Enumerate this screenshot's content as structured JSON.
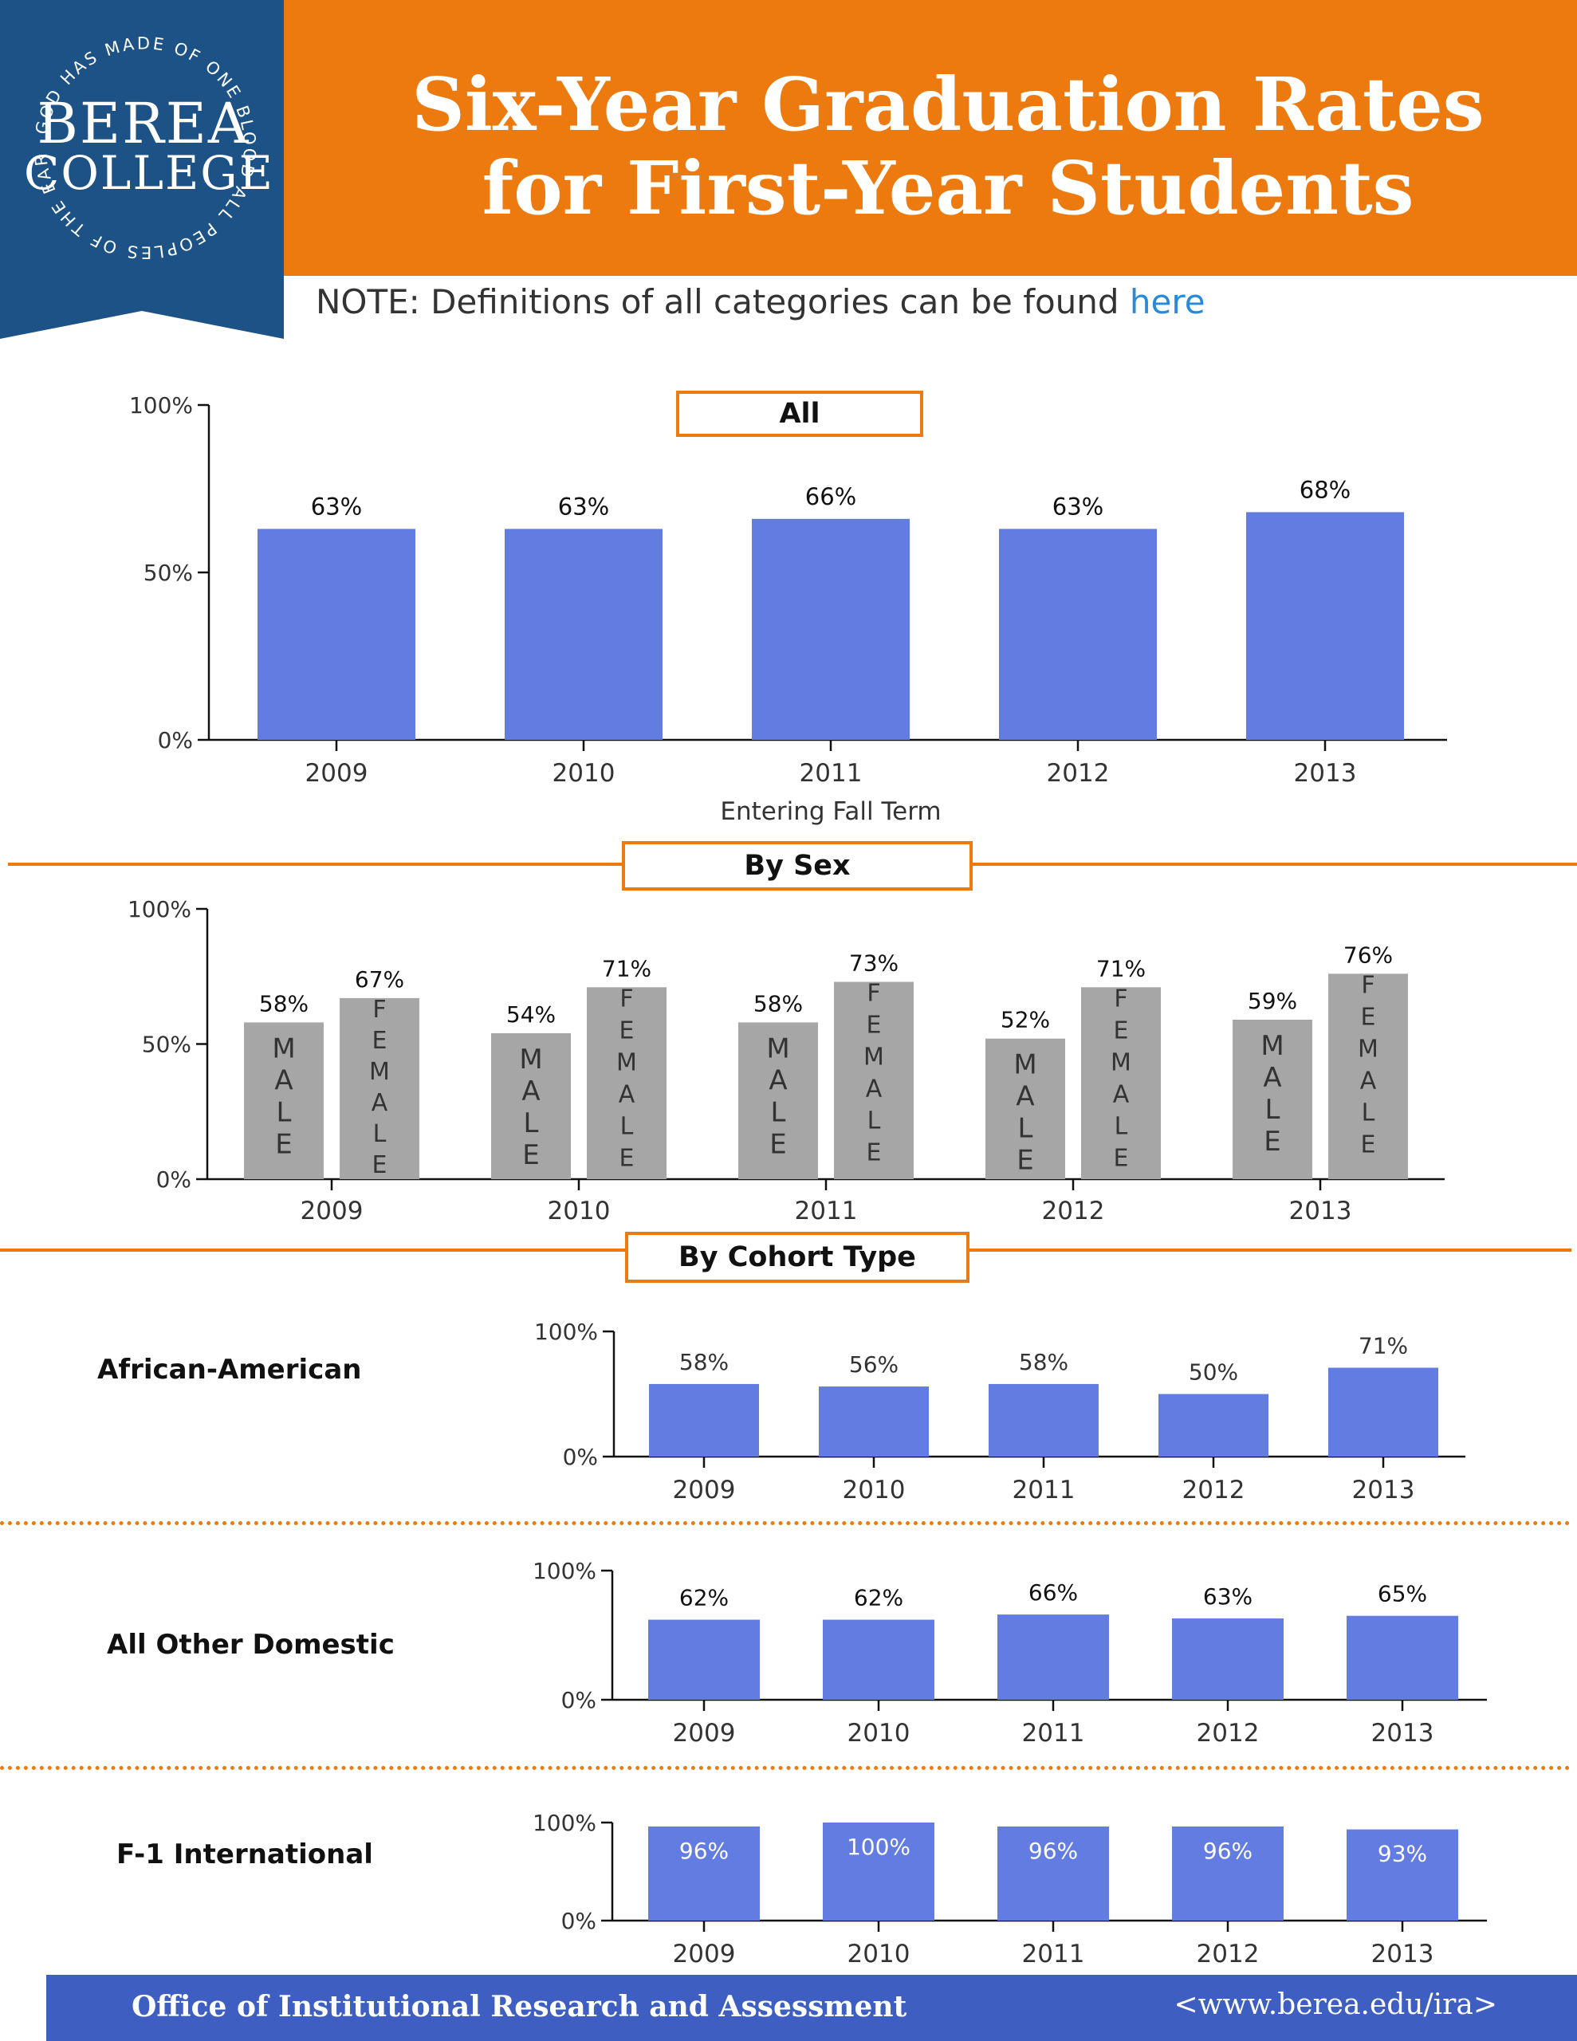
{
  "header": {
    "title_line_1": "Six-Year Graduation Rates",
    "title_line_2": "for First-Year Students",
    "colors": {
      "band": "#ec7a0f",
      "badge": "#1c5285",
      "bar": "#637ce1",
      "sex_bar": "#a6a6a6",
      "footer": "#3e5ec2"
    }
  },
  "logo": {
    "word_1": "BEREA",
    "word_2": "COLLEGE",
    "motto": "GOD HAS MADE OF ONE BLOOD ALL PEOPLES OF THE EARTH"
  },
  "note": {
    "text": "NOTE: Definitions of all categories can be found ",
    "link_label": "here"
  },
  "sections": {
    "all": "All",
    "by_sex": "By Sex",
    "by_cohort": "By Cohort Type"
  },
  "cohorts": {
    "african_american": "African-American",
    "all_other_domestic": "All Other Domestic",
    "f1_international": "F-1 International"
  },
  "chart_data": [
    {
      "id": "all",
      "type": "bar",
      "title": "All",
      "categories": [
        "2009",
        "2010",
        "2011",
        "2012",
        "2013"
      ],
      "values": [
        63,
        63,
        66,
        63,
        68
      ],
      "labels": [
        "63%",
        "63%",
        "66%",
        "63%",
        "68%"
      ],
      "xlabel": "Entering Fall Term",
      "ylabel": "",
      "ylim": [
        0,
        100
      ],
      "yticks": [
        "0%",
        "50%",
        "100%"
      ]
    },
    {
      "id": "by_sex",
      "type": "bar",
      "title": "By Sex",
      "categories": [
        "2009",
        "2010",
        "2011",
        "2012",
        "2013"
      ],
      "series": [
        {
          "name": "MALE",
          "values": [
            58,
            54,
            58,
            52,
            59
          ],
          "labels": [
            "58%",
            "54%",
            "58%",
            "52%",
            "59%"
          ]
        },
        {
          "name": "FEMALE",
          "values": [
            67,
            71,
            73,
            71,
            76
          ],
          "labels": [
            "67%",
            "71%",
            "73%",
            "71%",
            "76%"
          ]
        }
      ],
      "ylim": [
        0,
        100
      ],
      "yticks": [
        "0%",
        "50%",
        "100%"
      ]
    },
    {
      "id": "african_american",
      "type": "bar",
      "title": "African-American",
      "categories": [
        "2009",
        "2010",
        "2011",
        "2012",
        "2013"
      ],
      "values": [
        58,
        56,
        58,
        50,
        71
      ],
      "labels": [
        "58%",
        "56%",
        "58%",
        "50%",
        "71%"
      ],
      "ylim": [
        0,
        100
      ],
      "yticks": [
        "0%",
        "100%"
      ]
    },
    {
      "id": "all_other_domestic",
      "type": "bar",
      "title": "All Other Domestic",
      "categories": [
        "2009",
        "2010",
        "2011",
        "2012",
        "2013"
      ],
      "values": [
        62,
        62,
        66,
        63,
        65
      ],
      "labels": [
        "62%",
        "62%",
        "66%",
        "63%",
        "65%"
      ],
      "ylim": [
        0,
        100
      ],
      "yticks": [
        "0%",
        "100%"
      ]
    },
    {
      "id": "f1_international",
      "type": "bar",
      "title": "F-1 International",
      "categories": [
        "2009",
        "2010",
        "2011",
        "2012",
        "2013"
      ],
      "values": [
        96,
        100,
        96,
        96,
        93
      ],
      "labels": [
        "96%",
        "100%",
        "96%",
        "96%",
        "93%"
      ],
      "ylim": [
        0,
        100
      ],
      "yticks": [
        "0%",
        "100%"
      ]
    }
  ],
  "footer": {
    "office": "Office of Institutional Research and Assessment",
    "url": "<www.berea.edu/ira>"
  }
}
